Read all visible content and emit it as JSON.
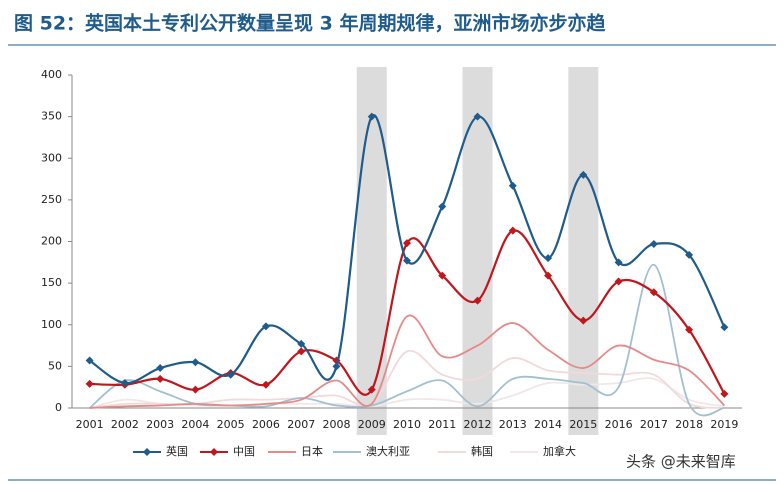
{
  "chart_data": {
    "type": "line",
    "title": "图 52：英国本土专利公开数量呈现 3 年周期规律，亚洲市场亦步亦趋",
    "categories": [
      "2001",
      "2002",
      "2003",
      "2004",
      "2005",
      "2006",
      "2007",
      "2008",
      "2009",
      "2010",
      "2011",
      "2012",
      "2013",
      "2014",
      "2015",
      "2016",
      "2017",
      "2018",
      "2019"
    ],
    "highlight_categories": [
      "2009",
      "2012",
      "2015"
    ],
    "ylim": [
      0,
      400
    ],
    "yticks": [
      0,
      50,
      100,
      150,
      200,
      250,
      300,
      350,
      400
    ],
    "series": [
      {
        "name": "英国",
        "color": "#1f5c8b",
        "marker": true,
        "values": [
          57,
          30,
          48,
          55,
          40,
          98,
          77,
          50,
          350,
          177,
          242,
          350,
          267,
          180,
          280,
          175,
          197,
          184,
          97
        ]
      },
      {
        "name": "中国",
        "color": "#c0161c",
        "marker": true,
        "values": [
          29,
          28,
          35,
          22,
          42,
          28,
          68,
          57,
          22,
          198,
          159,
          129,
          213,
          159,
          105,
          152,
          139,
          94,
          17
        ]
      },
      {
        "name": "日本",
        "color": "#e58a88",
        "marker": false,
        "values": [
          0,
          2,
          3,
          5,
          3,
          5,
          10,
          33,
          5,
          110,
          62,
          75,
          102,
          70,
          48,
          75,
          58,
          45,
          3
        ]
      },
      {
        "name": "澳大利亚",
        "color": "#a3c0d0",
        "marker": false,
        "values": [
          0,
          33,
          20,
          5,
          3,
          2,
          12,
          3,
          3,
          20,
          33,
          2,
          35,
          35,
          30,
          25,
          172,
          5,
          0
        ]
      },
      {
        "name": "韩国",
        "color": "#f2d9da",
        "marker": false,
        "values": [
          0,
          5,
          5,
          5,
          10,
          10,
          12,
          15,
          5,
          68,
          40,
          35,
          60,
          45,
          42,
          40,
          40,
          5,
          0
        ]
      },
      {
        "name": "加拿大",
        "color": "#f1e6e8",
        "marker": false,
        "values": [
          0,
          10,
          5,
          3,
          3,
          5,
          5,
          5,
          2,
          10,
          10,
          5,
          15,
          30,
          28,
          30,
          35,
          10,
          2
        ]
      }
    ],
    "watermark": "头条 @未来智库"
  }
}
